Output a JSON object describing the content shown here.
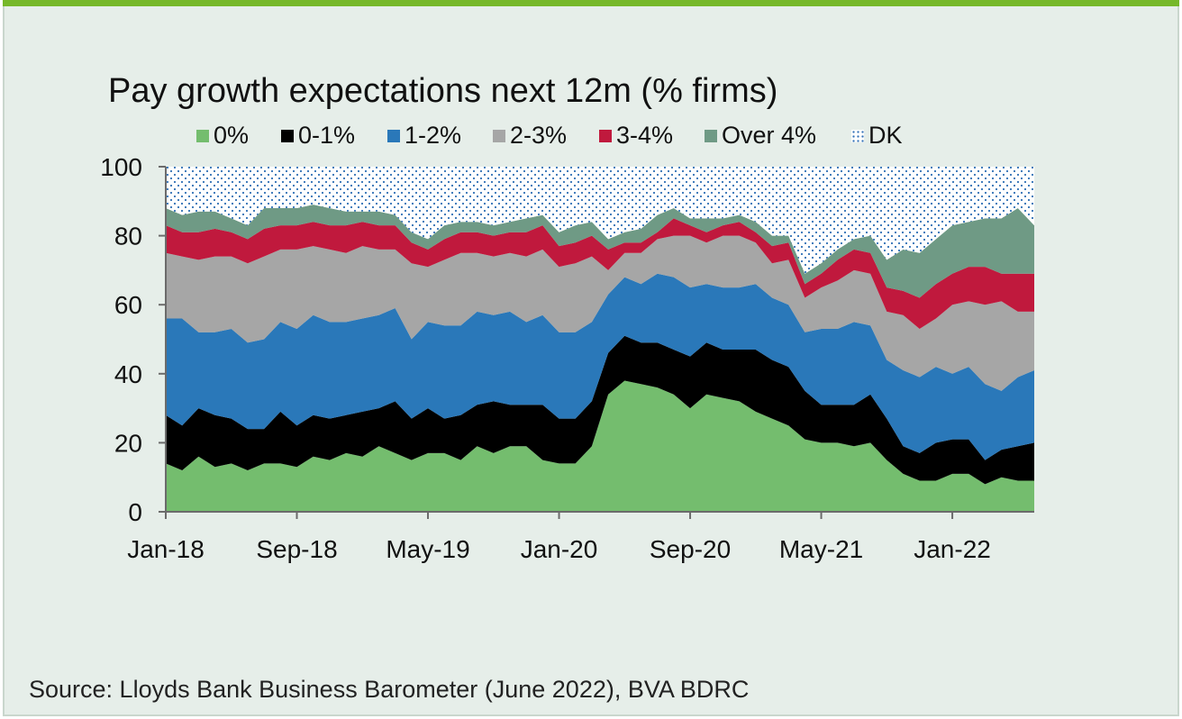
{
  "chart_data": {
    "type": "area",
    "title": "Pay growth expectations next 12m (% firms)",
    "xlabel": "",
    "ylabel": "",
    "ylim": [
      0,
      100
    ],
    "yticks": [
      "0",
      "20",
      "40",
      "60",
      "80",
      "100"
    ],
    "xticks": [
      "Jan-18",
      "Sep-18",
      "May-19",
      "Jan-20",
      "Sep-20",
      "May-21",
      "Jan-22"
    ],
    "x": [
      "Jan-18",
      "Feb-18",
      "Mar-18",
      "Apr-18",
      "May-18",
      "Jun-18",
      "Jul-18",
      "Aug-18",
      "Sep-18",
      "Oct-18",
      "Nov-18",
      "Dec-18",
      "Jan-19",
      "Feb-19",
      "Mar-19",
      "Apr-19",
      "May-19",
      "Jun-19",
      "Jul-19",
      "Aug-19",
      "Sep-19",
      "Oct-19",
      "Nov-19",
      "Dec-19",
      "Jan-20",
      "Feb-20",
      "Mar-20",
      "Apr-20",
      "May-20",
      "Jun-20",
      "Jul-20",
      "Aug-20",
      "Sep-20",
      "Oct-20",
      "Nov-20",
      "Dec-20",
      "Jan-21",
      "Feb-21",
      "Mar-21",
      "Apr-21",
      "May-21",
      "Jun-21",
      "Jul-21",
      "Aug-21",
      "Sep-21",
      "Oct-21",
      "Nov-21",
      "Dec-21",
      "Jan-22",
      "Feb-22",
      "Mar-22",
      "Apr-22",
      "May-22",
      "Jun-22"
    ],
    "stacked": true,
    "legend_position": "top",
    "series": [
      {
        "name": "0%",
        "color": "#74bd6e",
        "values": [
          14,
          12,
          16,
          13,
          14,
          12,
          14,
          14,
          13,
          16,
          15,
          17,
          16,
          19,
          17,
          15,
          17,
          17,
          15,
          19,
          17,
          19,
          19,
          15,
          14,
          14,
          19,
          34,
          38,
          37,
          36,
          34,
          30,
          34,
          33,
          32,
          29,
          27,
          25,
          21,
          20,
          20,
          19,
          20,
          15,
          11,
          9,
          9,
          11,
          11,
          8,
          10,
          9,
          9
        ]
      },
      {
        "name": "0-1%",
        "color": "#000000",
        "values": [
          14,
          13,
          14,
          15,
          13,
          12,
          10,
          15,
          12,
          12,
          12,
          11,
          13,
          11,
          15,
          12,
          13,
          10,
          13,
          12,
          15,
          12,
          12,
          16,
          13,
          13,
          13,
          12,
          13,
          12,
          13,
          13,
          15,
          15,
          14,
          15,
          18,
          17,
          17,
          14,
          11,
          11,
          12,
          14,
          12,
          8,
          8,
          11,
          10,
          10,
          7,
          8,
          10,
          11
        ]
      },
      {
        "name": "1-2%",
        "color": "#2a78b9",
        "values": [
          28,
          31,
          22,
          24,
          26,
          25,
          26,
          26,
          28,
          29,
          28,
          27,
          27,
          27,
          27,
          23,
          25,
          27,
          26,
          27,
          25,
          27,
          24,
          26,
          25,
          25,
          23,
          17,
          17,
          17,
          20,
          21,
          20,
          17,
          18,
          18,
          19,
          18,
          18,
          17,
          22,
          22,
          24,
          20,
          17,
          22,
          22,
          22,
          19,
          21,
          22,
          17,
          20,
          21
        ]
      },
      {
        "name": "2-3%",
        "color": "#a6a6a6",
        "values": [
          19,
          18,
          21,
          22,
          21,
          23,
          24,
          21,
          23,
          20,
          21,
          20,
          21,
          19,
          17,
          22,
          16,
          19,
          21,
          17,
          17,
          17,
          19,
          19,
          19,
          20,
          19,
          7,
          7,
          9,
          10,
          12,
          15,
          12,
          15,
          15,
          12,
          10,
          13,
          10,
          12,
          14,
          15,
          15,
          14,
          16,
          14,
          14,
          20,
          19,
          23,
          26,
          19,
          17
        ]
      },
      {
        "name": "3-4%",
        "color": "#c0193d",
        "values": [
          8,
          7,
          8,
          8,
          7,
          7,
          8,
          7,
          7,
          7,
          7,
          8,
          7,
          7,
          7,
          6,
          5,
          6,
          6,
          6,
          6,
          6,
          7,
          7,
          6,
          6,
          6,
          6,
          3,
          3,
          2,
          5,
          3,
          3,
          3,
          4,
          3,
          5,
          5,
          4,
          4,
          6,
          6,
          6,
          7,
          7,
          9,
          10,
          9,
          10,
          11,
          8,
          11,
          11
        ]
      },
      {
        "name": "Over 4%",
        "color": "#6f9a85",
        "values": [
          5,
          5,
          6,
          5,
          4,
          4,
          6,
          5,
          5,
          5,
          5,
          4,
          3,
          4,
          3,
          3,
          3,
          4,
          3,
          3,
          3,
          3,
          4,
          3,
          4,
          5,
          4,
          3,
          3,
          4,
          5,
          3,
          2,
          4,
          2,
          2,
          3,
          3,
          2,
          3,
          3,
          3,
          3,
          5,
          8,
          12,
          13,
          13,
          14,
          13,
          14,
          16,
          19,
          14
        ]
      },
      {
        "name": "DK",
        "color": "#2f6fb5",
        "values": [
          12,
          14,
          13,
          13,
          15,
          17,
          12,
          12,
          12,
          11,
          12,
          13,
          13,
          13,
          14,
          19,
          21,
          17,
          16,
          16,
          17,
          16,
          15,
          14,
          19,
          17,
          16,
          21,
          19,
          18,
          14,
          12,
          15,
          15,
          15,
          14,
          16,
          20,
          20,
          31,
          28,
          24,
          21,
          20,
          27,
          24,
          25,
          21,
          17,
          16,
          15,
          15,
          12,
          17
        ]
      }
    ]
  },
  "source_text": "Source: Lloyds Bank Business Barometer (June 2022), BVA BDRC",
  "colors": {
    "panel_background": "#e6eee9",
    "top_bar": "#76b82a"
  }
}
